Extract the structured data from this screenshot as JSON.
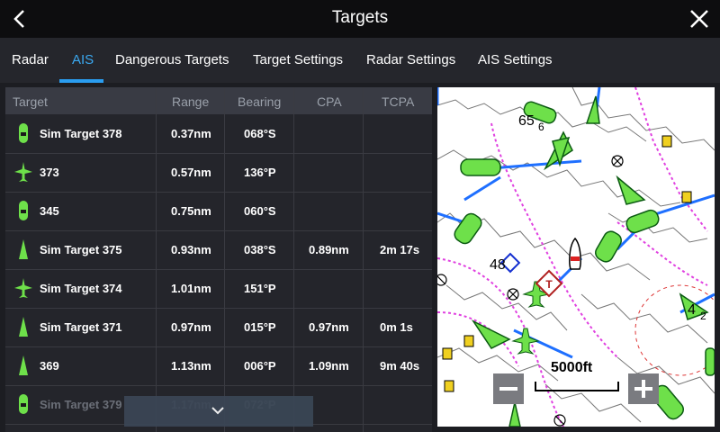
{
  "header": {
    "title": "Targets",
    "back_icon": "chevron-left-icon",
    "close_icon": "close-icon"
  },
  "tabs": [
    {
      "label": "Radar",
      "active": false
    },
    {
      "label": "AIS",
      "active": true
    },
    {
      "label": "Dangerous Targets",
      "active": false
    },
    {
      "label": "Target Settings",
      "active": false
    },
    {
      "label": "Radar Settings",
      "active": false
    },
    {
      "label": "AIS Settings",
      "active": false
    }
  ],
  "table": {
    "columns": [
      "Target",
      "Range",
      "Bearing",
      "CPA",
      "TCPA"
    ],
    "rows": [
      {
        "icon": "vessel-icon",
        "target": "Sim Target 378",
        "range": "0.37nm",
        "bearing": "068°S",
        "cpa": "",
        "tcpa": ""
      },
      {
        "icon": "aircraft-icon",
        "target": "373",
        "range": "0.57nm",
        "bearing": "136°P",
        "cpa": "",
        "tcpa": ""
      },
      {
        "icon": "vessel-icon",
        "target": "345",
        "range": "0.75nm",
        "bearing": "060°S",
        "cpa": "",
        "tcpa": ""
      },
      {
        "icon": "triangle-target-icon",
        "target": "Sim Target 375",
        "range": "0.93nm",
        "bearing": "038°S",
        "cpa": "0.89nm",
        "tcpa": "2m 17s"
      },
      {
        "icon": "aircraft-icon",
        "target": "Sim Target 374",
        "range": "1.01nm",
        "bearing": "151°P",
        "cpa": "",
        "tcpa": ""
      },
      {
        "icon": "triangle-target-icon",
        "target": "Sim Target 371",
        "range": "0.97nm",
        "bearing": "015°P",
        "cpa": "0.97nm",
        "tcpa": "0m  1s"
      },
      {
        "icon": "triangle-target-icon",
        "target": "369",
        "range": "1.13nm",
        "bearing": "006°P",
        "cpa": "1.09nm",
        "tcpa": "9m 40s"
      },
      {
        "icon": "vessel-icon",
        "target": "Sim Target 379",
        "range": "1.17nm",
        "bearing": "072°P",
        "cpa": "",
        "tcpa": ""
      }
    ]
  },
  "map": {
    "scale_label": "5000ft",
    "labels": [
      "65",
      "6",
      "48",
      "4",
      "2"
    ],
    "zoom_out_icon": "minus-icon",
    "zoom_in_icon": "plus-icon"
  },
  "scroll_down_icon": "chevron-down-icon",
  "colors": {
    "accent": "#2a9df0",
    "target_green": "#6ee04a",
    "header_bg": "#0d0d0f"
  }
}
